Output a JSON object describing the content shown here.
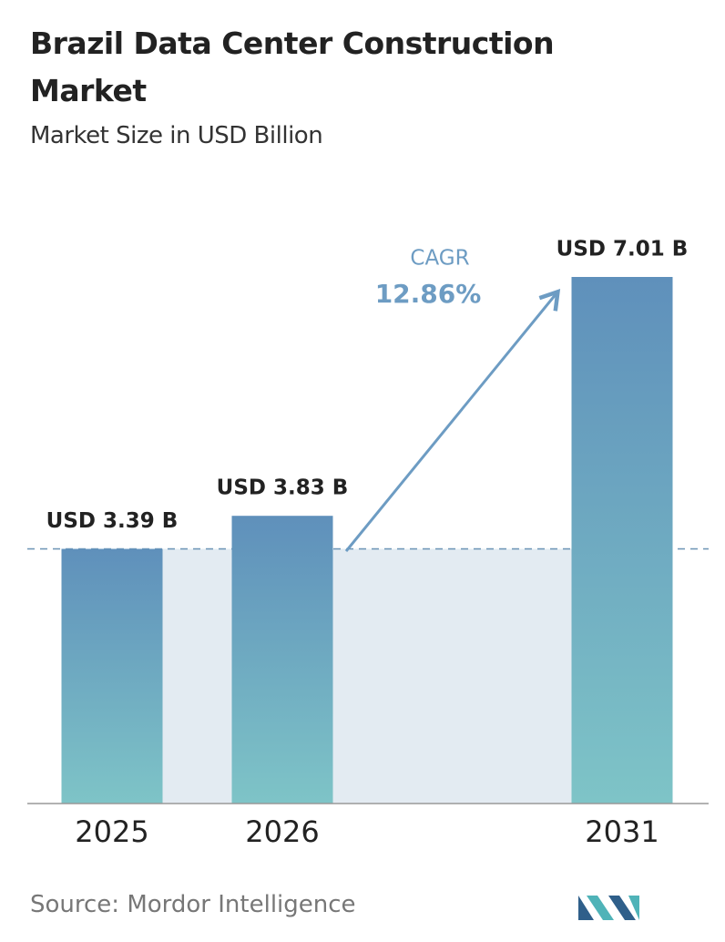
{
  "chart_data": {
    "type": "bar",
    "title": "Brazil Data Center Construction Market",
    "subtitle": "Market Size in USD Billion",
    "categories": [
      "2025",
      "2026",
      "2031"
    ],
    "values": [
      3.39,
      3.83,
      7.01
    ],
    "value_labels": [
      "USD 3.39 B",
      "USD 3.83 B",
      "USD 7.01 B"
    ],
    "gradient": [
      "#5f90bb",
      "#7ec4c7"
    ],
    "annotation": {
      "label": "CAGR",
      "value": "12.86%"
    },
    "source": "Source:  Mordor Intelligence"
  }
}
